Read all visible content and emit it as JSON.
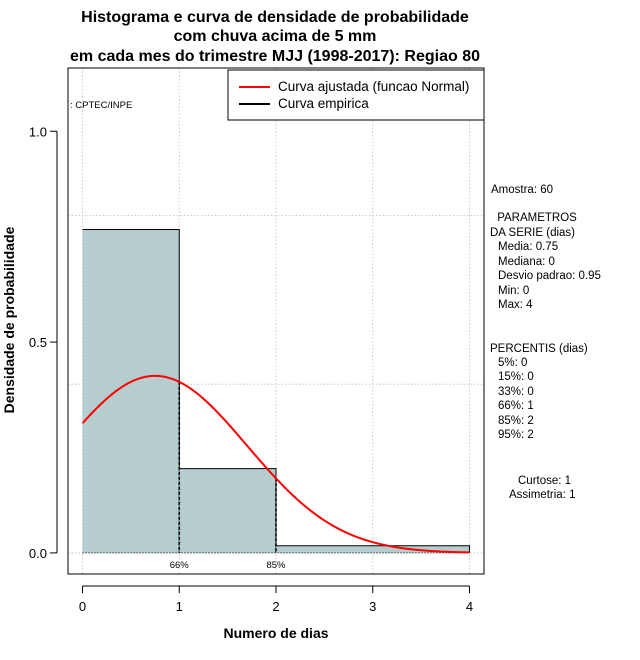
{
  "chart_data": {
    "type": "bar",
    "title_lines": [
      "Histograma e curva de densidade de probabilidade",
      "com chuva acima de 5 mm",
      "em cada mes do trimestre MJJ (1998-2017): Regiao 80"
    ],
    "xlabel": "Numero de dias",
    "ylabel": "Densidade de probabilidade",
    "xlim": [
      -0.15,
      4.15
    ],
    "ylim": [
      -0.05,
      1.15
    ],
    "x_ticks": [
      0,
      1,
      2,
      3,
      4
    ],
    "x_tick_labels": [
      "0",
      "1",
      "2",
      "3",
      "4"
    ],
    "y_ticks": [
      0.0,
      0.5,
      1.0
    ],
    "y_tick_labels": [
      "0.0",
      "0.5",
      "1.0"
    ],
    "grid": true,
    "bins": [
      {
        "from": 0,
        "to": 1,
        "density": 0.767
      },
      {
        "from": 1,
        "to": 2,
        "density": 0.2
      },
      {
        "from": 2,
        "to": 4,
        "density": 0.017
      }
    ],
    "bar_color": "#b5cdcf",
    "normal_curve": {
      "mean": 0.75,
      "sd": 0.95,
      "color": "#ff0000"
    },
    "percentile_markers": [
      {
        "x": 1,
        "label": "66%"
      },
      {
        "x": 2,
        "label": "85%"
      }
    ],
    "legend": {
      "position": "top-right",
      "entries": [
        {
          "label": "Curva ajustada (funcao Normal)",
          "color": "#ff0000"
        },
        {
          "label": "Curva empirica",
          "color": "#000000"
        }
      ]
    },
    "watermark": ": CPTEC/INPE"
  },
  "stats": {
    "amostra": "Amostra: 60",
    "param_lines": [
      " PARAMETROS",
      "DA SERIE (dias)"
    ],
    "param_values": [
      "Media: 0.75",
      "Mediana: 0",
      "Desvio padrao: 0.95",
      "Min: 0",
      "Max: 4"
    ],
    "percentis_title": "PERCENTIS (dias)",
    "percentis": [
      "5%: 0",
      "15%: 0",
      "33%: 0",
      "66%: 1",
      "85%: 2",
      "95%: 2"
    ],
    "curtose": "Curtose: 1",
    "assimetria": "Assimetria: 1"
  }
}
